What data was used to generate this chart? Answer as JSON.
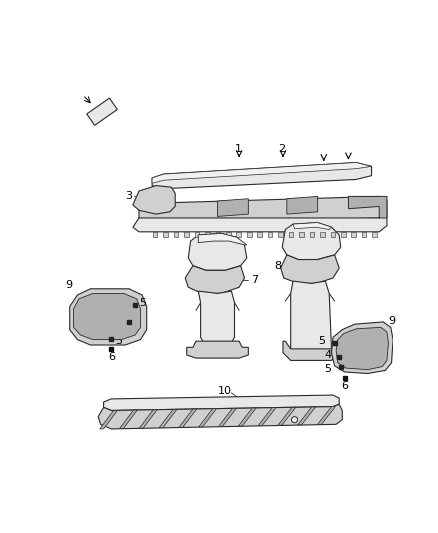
{
  "background_color": "#ffffff",
  "fig_width": 4.38,
  "fig_height": 5.33,
  "dpi": 100,
  "line_color": "#2a2a2a",
  "fill_light": "#e8e8e8",
  "fill_mid": "#d0d0d0",
  "fill_dark": "#b0b0b0"
}
